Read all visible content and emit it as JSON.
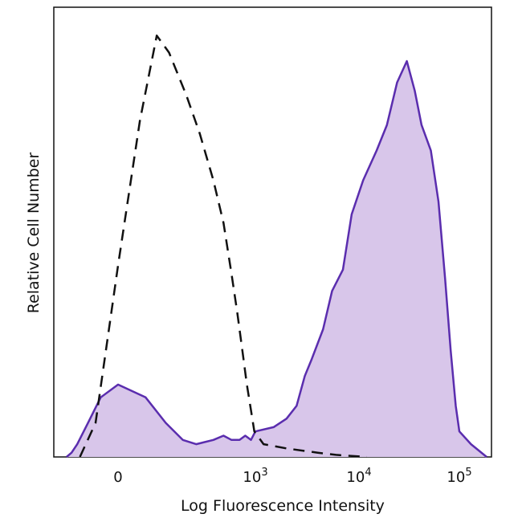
{
  "chart_data": {
    "type": "area",
    "xlabel": "Log Fluorescence Intensity",
    "ylabel": "Relative Cell Number",
    "x_scale": "biexponential (log fluorescence)",
    "x_ticks": [
      {
        "value": 0,
        "base": "0",
        "exp": ""
      },
      {
        "value": 1000,
        "base": "10",
        "exp": "3"
      },
      {
        "value": 10000,
        "base": "10",
        "exp": "4"
      },
      {
        "value": 100000,
        "base": "10",
        "exp": "5"
      }
    ],
    "ylim": [
      0,
      100
    ],
    "grid": false,
    "legend": "none",
    "series": [
      {
        "style": "filled-area",
        "line_color": "#5a2dae",
        "fill_color": "#d8c6ea",
        "points": [
          [
            -60,
            0
          ],
          [
            -40,
            1
          ],
          [
            -25,
            3
          ],
          [
            -10,
            8
          ],
          [
            -3,
            14
          ],
          [
            0,
            17
          ],
          [
            3,
            14
          ],
          [
            10,
            8
          ],
          [
            25,
            4
          ],
          [
            50,
            3
          ],
          [
            120,
            4
          ],
          [
            200,
            5
          ],
          [
            300,
            4
          ],
          [
            450,
            4
          ],
          [
            600,
            5
          ],
          [
            800,
            4
          ],
          [
            1000,
            6
          ],
          [
            1500,
            7
          ],
          [
            2000,
            9
          ],
          [
            2500,
            12
          ],
          [
            3000,
            19
          ],
          [
            3500,
            23
          ],
          [
            4500,
            30
          ],
          [
            5500,
            39
          ],
          [
            7000,
            44
          ],
          [
            8500,
            57
          ],
          [
            11000,
            65
          ],
          [
            15000,
            72
          ],
          [
            19000,
            78
          ],
          [
            24000,
            88
          ],
          [
            30000,
            93
          ],
          [
            36000,
            86
          ],
          [
            42000,
            78
          ],
          [
            52000,
            72
          ],
          [
            62000,
            60
          ],
          [
            72000,
            42
          ],
          [
            82000,
            25
          ],
          [
            92000,
            12
          ],
          [
            100000,
            6
          ],
          [
            110000,
            3
          ],
          [
            125000,
            0
          ]
        ]
      },
      {
        "style": "dashed-line",
        "line_color": "#111111",
        "points": [
          [
            -20,
            0
          ],
          [
            -5,
            8
          ],
          [
            0,
            45
          ],
          [
            2,
            79
          ],
          [
            6,
            99
          ],
          [
            12,
            95
          ],
          [
            30,
            85
          ],
          [
            60,
            76
          ],
          [
            120,
            65
          ],
          [
            200,
            55
          ],
          [
            300,
            43
          ],
          [
            400,
            34
          ],
          [
            520,
            25
          ],
          [
            650,
            17
          ],
          [
            800,
            11
          ],
          [
            950,
            6
          ],
          [
            1200,
            3
          ],
          [
            2000,
            2
          ],
          [
            4000,
            1
          ],
          [
            6000,
            0.5
          ],
          [
            12000,
            0
          ]
        ]
      }
    ]
  }
}
